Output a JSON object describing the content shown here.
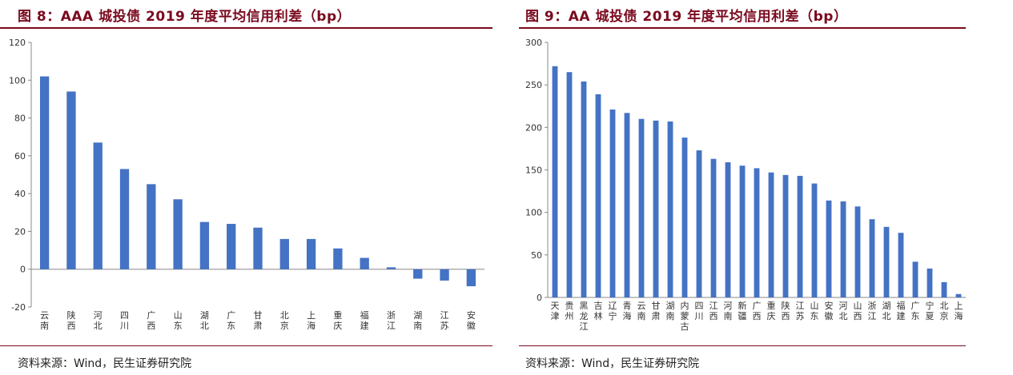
{
  "figures": [
    {
      "title": "图 8：AAA 城投债 2019 年度平均信用利差（bp）",
      "source": "资料来源：Wind，民生证券研究院"
    },
    {
      "title": "图 9：AA 城投债 2019 年度平均信用利差（bp）",
      "source": "资料来源：Wind，民生证券研究院"
    }
  ],
  "colors": {
    "bar": "#4472c4",
    "title": "#7a0a1e"
  },
  "chart_data": [
    {
      "type": "bar",
      "title": "",
      "xlabel": "",
      "ylabel": "",
      "ylim": [
        -20,
        120
      ],
      "yticks": [
        -20,
        0,
        20,
        40,
        60,
        80,
        100,
        120
      ],
      "grid": false,
      "categories": [
        "云南",
        "陕西",
        "河北",
        "四川",
        "广西",
        "山东",
        "湖北",
        "广东",
        "甘肃",
        "北京",
        "上海",
        "重庆",
        "福建",
        "浙江",
        "湖南",
        "江苏",
        "安徽"
      ],
      "values": [
        102,
        94,
        67,
        53,
        45,
        37,
        25,
        24,
        22,
        16,
        16,
        11,
        6,
        1,
        -5,
        -6,
        -9
      ]
    },
    {
      "type": "bar",
      "title": "",
      "xlabel": "",
      "ylabel": "",
      "ylim": [
        0,
        300
      ],
      "yticks": [
        0,
        50,
        100,
        150,
        200,
        250,
        300
      ],
      "grid": false,
      "categories": [
        "天津",
        "贵州",
        "黑龙江",
        "吉林",
        "辽宁",
        "青海",
        "云南",
        "甘肃",
        "湖南",
        "内蒙古",
        "四川",
        "江西",
        "河南",
        "新疆",
        "广西",
        "重庆",
        "陕西",
        "江苏",
        "山东",
        "安徽",
        "河北",
        "山西",
        "浙江",
        "湖北",
        "福建",
        "广东",
        "宁夏",
        "北京",
        "上海"
      ],
      "values": [
        272,
        265,
        254,
        239,
        221,
        217,
        210,
        208,
        207,
        188,
        173,
        163,
        159,
        155,
        152,
        147,
        144,
        143,
        134,
        114,
        113,
        107,
        92,
        83,
        76,
        42,
        34,
        18,
        4
      ]
    }
  ]
}
